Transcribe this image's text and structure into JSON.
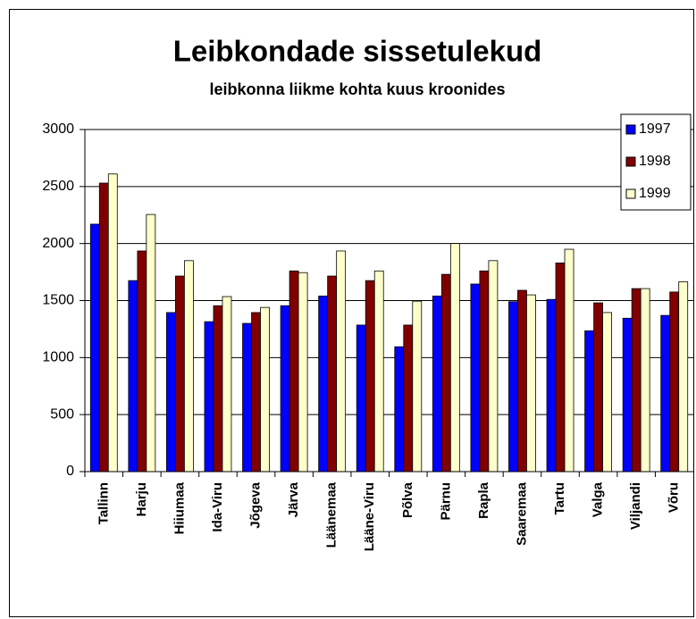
{
  "chart_data": {
    "type": "bar",
    "title": "Leibkondade sissetulekud",
    "subtitle": "leibkonna liikme kohta kuus kroonides",
    "categories": [
      "Tallinn",
      "Harju",
      "Hiiumaa",
      "Ida-Viru",
      "Jõgeva",
      "Järva",
      "Läänemaa",
      "Lääne-Viru",
      "Põlva",
      "Pärnu",
      "Rapla",
      "Saaremaa",
      "Tartu",
      "Valga",
      "Viljandi",
      "Võru"
    ],
    "series": [
      {
        "name": "1997",
        "color": "#0000ff",
        "values": [
          2170,
          1675,
          1395,
          1315,
          1300,
          1455,
          1540,
          1285,
          1095,
          1540,
          1645,
          1490,
          1510,
          1235,
          1345,
          1370
        ]
      },
      {
        "name": "1998",
        "color": "#800000",
        "values": [
          2530,
          1935,
          1715,
          1455,
          1395,
          1760,
          1715,
          1675,
          1285,
          1730,
          1760,
          1590,
          1830,
          1480,
          1605,
          1575
        ]
      },
      {
        "name": "1999",
        "color": "#ffffcc",
        "values": [
          2610,
          2255,
          1850,
          1535,
          1440,
          1745,
          1935,
          1760,
          1495,
          2000,
          1850,
          1550,
          1950,
          1395,
          1605,
          1665
        ]
      }
    ],
    "ylim": [
      0,
      3000
    ],
    "yticks": [
      0,
      500,
      1000,
      1500,
      2000,
      2500,
      3000
    ],
    "grid": true,
    "legend": "top-right"
  }
}
